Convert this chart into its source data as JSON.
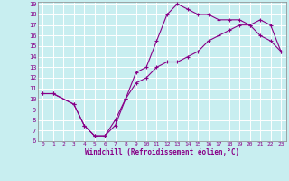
{
  "xlabel": "Windchill (Refroidissement éolien,°C)",
  "bg_color": "#c8eef0",
  "grid_color": "#ffffff",
  "line_color": "#880088",
  "xlim": [
    -0.5,
    23.5
  ],
  "ylim": [
    6,
    19.2
  ],
  "xticks": [
    0,
    1,
    2,
    3,
    4,
    5,
    6,
    7,
    8,
    9,
    10,
    11,
    12,
    13,
    14,
    15,
    16,
    17,
    18,
    19,
    20,
    21,
    22,
    23
  ],
  "yticks": [
    6,
    7,
    8,
    9,
    10,
    11,
    12,
    13,
    14,
    15,
    16,
    17,
    18,
    19
  ],
  "line1_x": [
    0,
    1,
    3,
    4,
    5,
    6,
    7,
    8,
    9,
    10,
    11,
    12,
    13,
    14,
    15,
    16,
    17,
    18,
    19,
    20,
    21,
    22,
    23
  ],
  "line1_y": [
    10.5,
    10.5,
    9.5,
    7.5,
    6.5,
    6.5,
    8.0,
    10.0,
    12.5,
    13.0,
    15.5,
    18.0,
    19.0,
    18.5,
    18.0,
    18.0,
    17.5,
    17.5,
    17.5,
    17.0,
    16.0,
    15.5,
    14.5
  ],
  "line2_x": [
    0,
    1,
    3,
    4,
    5,
    6,
    7,
    8,
    9,
    10,
    11,
    12,
    13,
    14,
    15,
    16,
    17,
    18,
    19,
    20,
    21,
    22,
    23
  ],
  "line2_y": [
    10.5,
    10.5,
    9.5,
    7.5,
    6.5,
    6.5,
    7.5,
    10.0,
    11.5,
    12.0,
    13.0,
    13.5,
    13.5,
    14.0,
    14.5,
    15.5,
    16.0,
    16.5,
    17.0,
    17.0,
    17.5,
    17.0,
    14.5
  ]
}
